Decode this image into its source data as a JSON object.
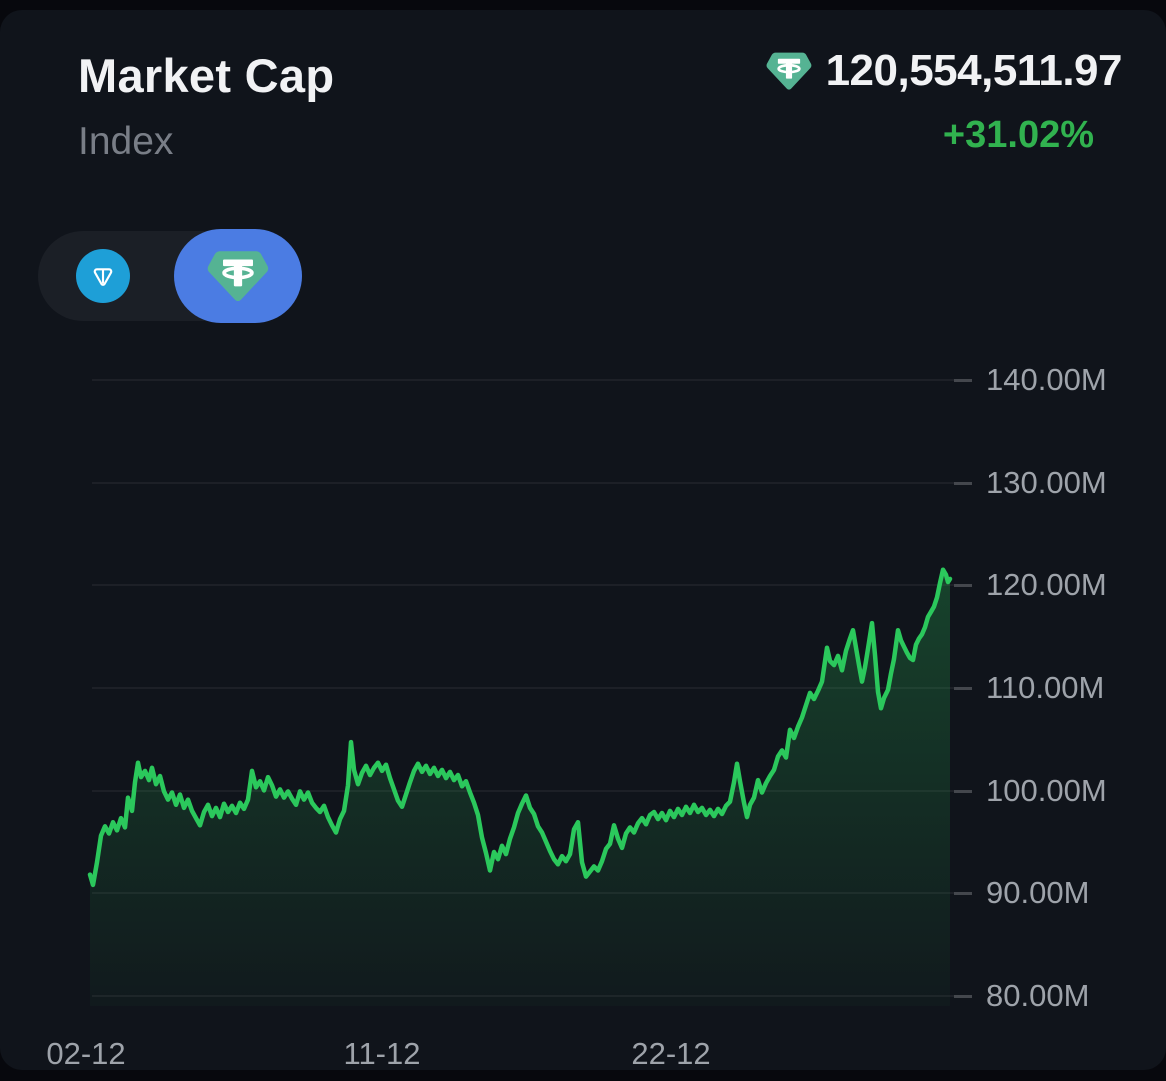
{
  "header": {
    "title": "Market Cap",
    "subtitle": "Index",
    "value": "120,554,511.97",
    "change": "+31.02%"
  },
  "toggle": {
    "options": [
      {
        "id": "ton",
        "icon": "ton-icon",
        "selected": false
      },
      {
        "id": "tether",
        "icon": "tether-icon",
        "selected": true
      }
    ]
  },
  "colors": {
    "positive_green": "#31B24F",
    "line_green": "#2BC85C",
    "ton_blue": "#1E9FD7",
    "selected_pill_blue": "#4B7CE3",
    "tether_teal": "#55B393",
    "card_background": "#10141B",
    "axis_label_gray": "#9EA3AA"
  },
  "chart_data": {
    "type": "area",
    "title": "Market Cap Index",
    "unit": "M",
    "grid": true,
    "legend": false,
    "ylim": [
      80,
      140
    ],
    "line_color": "#2BC85C",
    "y_axis": {
      "ticks": [
        {
          "label": "140.00M",
          "value": 140
        },
        {
          "label": "130.00M",
          "value": 130
        },
        {
          "label": "120.00M",
          "value": 120
        },
        {
          "label": "110.00M",
          "value": 110
        },
        {
          "label": "100.00M",
          "value": 100
        },
        {
          "label": "90.00M",
          "value": 90
        },
        {
          "label": "80.00M",
          "value": 80
        }
      ]
    },
    "x_axis": {
      "ticks": [
        {
          "label": "02-12",
          "x": 86
        },
        {
          "label": "11-12",
          "x": 382
        },
        {
          "label": "22-12",
          "x": 671
        }
      ]
    },
    "points": [
      [
        90,
        92.8
      ],
      [
        93,
        91.8
      ],
      [
        97,
        94.0
      ],
      [
        101,
        96.6
      ],
      [
        105,
        97.5
      ],
      [
        109,
        96.8
      ],
      [
        113,
        97.9
      ],
      [
        117,
        97.1
      ],
      [
        121,
        98.3
      ],
      [
        125,
        97.4
      ],
      [
        128,
        100.3
      ],
      [
        132,
        99.0
      ],
      [
        135,
        101.8
      ],
      [
        138,
        103.7
      ],
      [
        141,
        102.3
      ],
      [
        145,
        102.9
      ],
      [
        149,
        102.0
      ],
      [
        152,
        103.2
      ],
      [
        156,
        101.6
      ],
      [
        160,
        102.4
      ],
      [
        164,
        100.9
      ],
      [
        168,
        100.1
      ],
      [
        172,
        100.8
      ],
      [
        176,
        99.6
      ],
      [
        180,
        100.6
      ],
      [
        184,
        99.3
      ],
      [
        188,
        100.1
      ],
      [
        192,
        99.0
      ],
      [
        196,
        98.3
      ],
      [
        200,
        97.6
      ],
      [
        204,
        98.9
      ],
      [
        208,
        99.6
      ],
      [
        212,
        98.5
      ],
      [
        216,
        99.3
      ],
      [
        220,
        98.4
      ],
      [
        224,
        99.7
      ],
      [
        228,
        98.9
      ],
      [
        232,
        99.5
      ],
      [
        236,
        98.8
      ],
      [
        240,
        99.8
      ],
      [
        244,
        99.2
      ],
      [
        248,
        100.1
      ],
      [
        252,
        102.9
      ],
      [
        256,
        101.3
      ],
      [
        260,
        101.9
      ],
      [
        264,
        101.0
      ],
      [
        268,
        102.3
      ],
      [
        272,
        101.5
      ],
      [
        276,
        100.4
      ],
      [
        280,
        101.1
      ],
      [
        284,
        100.3
      ],
      [
        288,
        100.9
      ],
      [
        292,
        100.2
      ],
      [
        296,
        99.6
      ],
      [
        300,
        100.9
      ],
      [
        304,
        100.1
      ],
      [
        308,
        100.8
      ],
      [
        312,
        99.8
      ],
      [
        316,
        99.3
      ],
      [
        320,
        98.9
      ],
      [
        324,
        99.5
      ],
      [
        328,
        98.4
      ],
      [
        332,
        97.6
      ],
      [
        336,
        96.9
      ],
      [
        340,
        98.2
      ],
      [
        344,
        99.0
      ],
      [
        348,
        101.5
      ],
      [
        351,
        105.7
      ],
      [
        354,
        103.0
      ],
      [
        358,
        101.6
      ],
      [
        362,
        102.7
      ],
      [
        366,
        103.4
      ],
      [
        370,
        102.5
      ],
      [
        374,
        103.2
      ],
      [
        378,
        103.7
      ],
      [
        382,
        102.9
      ],
      [
        386,
        103.5
      ],
      [
        390,
        102.2
      ],
      [
        394,
        101.1
      ],
      [
        398,
        100.0
      ],
      [
        402,
        99.4
      ],
      [
        406,
        100.6
      ],
      [
        410,
        101.8
      ],
      [
        414,
        102.9
      ],
      [
        418,
        103.6
      ],
      [
        422,
        102.8
      ],
      [
        426,
        103.4
      ],
      [
        430,
        102.6
      ],
      [
        434,
        103.2
      ],
      [
        438,
        102.4
      ],
      [
        442,
        103.0
      ],
      [
        446,
        102.2
      ],
      [
        450,
        102.8
      ],
      [
        454,
        102.0
      ],
      [
        458,
        102.5
      ],
      [
        462,
        101.4
      ],
      [
        466,
        101.9
      ],
      [
        470,
        100.8
      ],
      [
        474,
        99.8
      ],
      [
        478,
        98.6
      ],
      [
        482,
        96.4
      ],
      [
        486,
        94.9
      ],
      [
        490,
        93.2
      ],
      [
        494,
        95.0
      ],
      [
        498,
        94.3
      ],
      [
        502,
        95.6
      ],
      [
        506,
        94.8
      ],
      [
        510,
        96.3
      ],
      [
        514,
        97.4
      ],
      [
        518,
        98.8
      ],
      [
        522,
        99.7
      ],
      [
        526,
        100.5
      ],
      [
        530,
        99.3
      ],
      [
        534,
        98.7
      ],
      [
        538,
        97.5
      ],
      [
        542,
        96.9
      ],
      [
        546,
        96.0
      ],
      [
        550,
        95.1
      ],
      [
        554,
        94.3
      ],
      [
        558,
        93.8
      ],
      [
        562,
        94.6
      ],
      [
        566,
        94.1
      ],
      [
        570,
        94.8
      ],
      [
        574,
        97.2
      ],
      [
        578,
        97.9
      ],
      [
        582,
        94.0
      ],
      [
        586,
        92.6
      ],
      [
        590,
        93.1
      ],
      [
        594,
        93.6
      ],
      [
        598,
        93.2
      ],
      [
        602,
        94.1
      ],
      [
        606,
        95.3
      ],
      [
        610,
        95.8
      ],
      [
        614,
        97.6
      ],
      [
        618,
        96.3
      ],
      [
        622,
        95.4
      ],
      [
        626,
        96.8
      ],
      [
        630,
        97.4
      ],
      [
        634,
        96.9
      ],
      [
        638,
        97.8
      ],
      [
        642,
        98.3
      ],
      [
        646,
        97.7
      ],
      [
        650,
        98.6
      ],
      [
        654,
        98.9
      ],
      [
        658,
        98.2
      ],
      [
        662,
        98.8
      ],
      [
        666,
        98.1
      ],
      [
        670,
        99.0
      ],
      [
        674,
        98.4
      ],
      [
        678,
        99.2
      ],
      [
        682,
        98.6
      ],
      [
        686,
        99.4
      ],
      [
        690,
        98.8
      ],
      [
        694,
        99.6
      ],
      [
        698,
        98.9
      ],
      [
        702,
        99.3
      ],
      [
        706,
        98.6
      ],
      [
        710,
        99.1
      ],
      [
        714,
        98.5
      ],
      [
        718,
        99.2
      ],
      [
        722,
        98.7
      ],
      [
        726,
        99.5
      ],
      [
        730,
        99.9
      ],
      [
        734,
        101.8
      ],
      [
        737,
        103.6
      ],
      [
        740,
        101.9
      ],
      [
        744,
        99.8
      ],
      [
        747,
        98.4
      ],
      [
        750,
        99.6
      ],
      [
        754,
        100.3
      ],
      [
        758,
        102.0
      ],
      [
        762,
        100.8
      ],
      [
        766,
        101.7
      ],
      [
        770,
        102.4
      ],
      [
        774,
        103.0
      ],
      [
        778,
        104.3
      ],
      [
        782,
        104.9
      ],
      [
        786,
        104.2
      ],
      [
        790,
        106.9
      ],
      [
        794,
        106.1
      ],
      [
        798,
        107.2
      ],
      [
        802,
        108.1
      ],
      [
        806,
        109.3
      ],
      [
        810,
        110.5
      ],
      [
        814,
        109.9
      ],
      [
        818,
        110.7
      ],
      [
        822,
        111.6
      ],
      [
        827,
        114.9
      ],
      [
        830,
        113.6
      ],
      [
        834,
        113.2
      ],
      [
        838,
        114.1
      ],
      [
        842,
        112.7
      ],
      [
        846,
        114.6
      ],
      [
        850,
        115.8
      ],
      [
        853,
        116.6
      ],
      [
        856,
        114.9
      ],
      [
        859,
        113.2
      ],
      [
        862,
        111.6
      ],
      [
        865,
        113.0
      ],
      [
        868,
        114.8
      ],
      [
        872,
        117.3
      ],
      [
        875,
        114.2
      ],
      [
        878,
        110.6
      ],
      [
        881,
        109.0
      ],
      [
        884,
        110.0
      ],
      [
        888,
        110.8
      ],
      [
        891,
        112.4
      ],
      [
        894,
        113.8
      ],
      [
        898,
        116.6
      ],
      [
        901,
        115.6
      ],
      [
        904,
        115.0
      ],
      [
        907,
        114.4
      ],
      [
        910,
        113.9
      ],
      [
        913,
        113.7
      ],
      [
        916,
        115.2
      ],
      [
        919,
        115.8
      ],
      [
        922,
        116.2
      ],
      [
        925,
        116.9
      ],
      [
        928,
        117.9
      ],
      [
        931,
        118.4
      ],
      [
        934,
        118.9
      ],
      [
        937,
        119.8
      ],
      [
        940,
        121.2
      ],
      [
        943,
        122.5
      ],
      [
        946,
        122.0
      ],
      [
        948,
        121.3
      ],
      [
        950,
        121.6
      ]
    ]
  }
}
